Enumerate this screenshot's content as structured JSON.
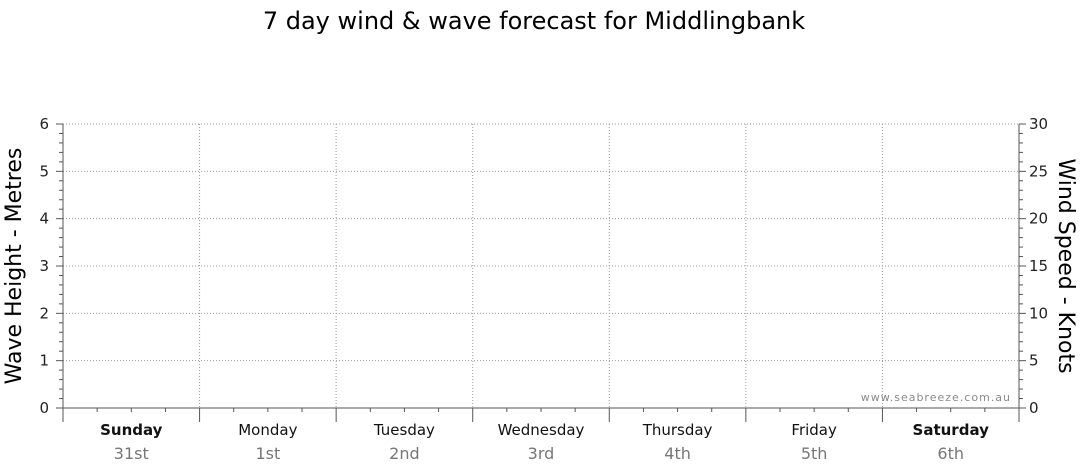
{
  "chart_data": {
    "type": "line",
    "title": "7 day wind & wave forecast for Middlingbank",
    "left_axis": {
      "label": "Wave Height - Metres",
      "ylim": [
        0,
        6
      ],
      "ticks": [
        "0",
        "1",
        "2",
        "3",
        "4",
        "5",
        "6"
      ]
    },
    "right_axis": {
      "label": "Wind Speed - Knots",
      "ylim": [
        0,
        30
      ],
      "ticks": [
        "0",
        "5",
        "10",
        "15",
        "20",
        "25",
        "30"
      ]
    },
    "days": [
      {
        "name": "Sunday",
        "date": "31st",
        "weekend": true
      },
      {
        "name": "Monday",
        "date": "1st",
        "weekend": false
      },
      {
        "name": "Tuesday",
        "date": "2nd",
        "weekend": false
      },
      {
        "name": "Wednesday",
        "date": "3rd",
        "weekend": false
      },
      {
        "name": "Thursday",
        "date": "4th",
        "weekend": false
      },
      {
        "name": "Friday",
        "date": "5th",
        "weekend": false
      },
      {
        "name": "Saturday",
        "date": "6th",
        "weekend": true
      }
    ],
    "grid": true,
    "series": [],
    "watermark": "www.seabreeze.com.au"
  }
}
